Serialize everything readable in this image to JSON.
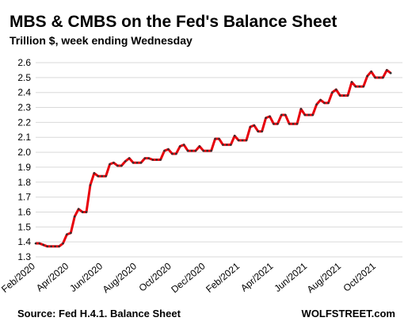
{
  "chart_data": {
    "type": "line",
    "title": "MBS & CMBS on the Fed's Balance Sheet",
    "subtitle": "Trillion $, week ending Wednesday",
    "source": "Source: Fed H.4.1. Balance Sheet",
    "credit": "WOLFSTREET.com",
    "ylim": [
      1.3,
      2.6
    ],
    "yticks": [
      "1.3",
      "1.4",
      "1.5",
      "1.6",
      "1.7",
      "1.8",
      "1.9",
      "2.0",
      "2.1",
      "2.2",
      "2.3",
      "2.4",
      "2.5",
      "2.6"
    ],
    "xlim": [
      0,
      94
    ],
    "xticks": [
      {
        "label": "Feb/2020",
        "x": 0
      },
      {
        "label": "Apr/2020",
        "x": 8.6
      },
      {
        "label": "Jun/2020",
        "x": 17.3
      },
      {
        "label": "Aug/2020",
        "x": 26
      },
      {
        "label": "Oct/2020",
        "x": 34.9
      },
      {
        "label": "Dec/2020",
        "x": 43.6
      },
      {
        "label": "Feb/2021",
        "x": 52.4
      },
      {
        "label": "Apr/2021",
        "x": 61
      },
      {
        "label": "Jun/2021",
        "x": 69.7
      },
      {
        "label": "Aug/2021",
        "x": 78.4
      },
      {
        "label": "Oct/2021",
        "x": 87.3
      }
    ],
    "grid": true,
    "line_color": "#e8000b",
    "marker_color": "#333333",
    "series": [
      {
        "values": [
          1.39,
          1.39,
          1.38,
          1.37,
          1.37,
          1.37,
          1.37,
          1.39,
          1.45,
          1.46,
          1.57,
          1.62,
          1.6,
          1.6,
          1.78,
          1.86,
          1.84,
          1.84,
          1.84,
          1.92,
          1.93,
          1.91,
          1.91,
          1.94,
          1.96,
          1.93,
          1.93,
          1.93,
          1.96,
          1.96,
          1.95,
          1.95,
          1.95,
          2.01,
          2.02,
          1.99,
          1.99,
          2.04,
          2.05,
          2.01,
          2.01,
          2.01,
          2.04,
          2.01,
          2.01,
          2.01,
          2.09,
          2.09,
          2.05,
          2.05,
          2.05,
          2.11,
          2.08,
          2.08,
          2.08,
          2.17,
          2.18,
          2.14,
          2.14,
          2.23,
          2.24,
          2.19,
          2.19,
          2.25,
          2.25,
          2.19,
          2.19,
          2.19,
          2.29,
          2.25,
          2.25,
          2.25,
          2.32,
          2.35,
          2.33,
          2.33,
          2.4,
          2.42,
          2.38,
          2.38,
          2.38,
          2.47,
          2.44,
          2.44,
          2.44,
          2.51,
          2.54,
          2.5,
          2.5,
          2.5,
          2.55,
          2.53
        ]
      }
    ]
  }
}
